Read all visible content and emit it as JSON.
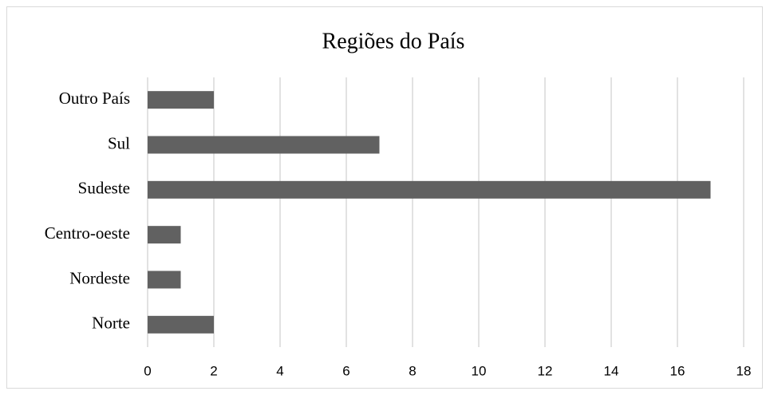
{
  "chart_data": {
    "type": "bar",
    "orientation": "horizontal",
    "title": "Regiões do País",
    "categories": [
      "Outro País",
      "Sul",
      "Sudeste",
      "Centro-oeste",
      "Nordeste",
      "Norte"
    ],
    "values": [
      2,
      7,
      17,
      1,
      1,
      2
    ],
    "color": "#616161",
    "xlim": [
      0,
      18
    ],
    "xticks": [
      0,
      2,
      4,
      6,
      8,
      10,
      12,
      14,
      16,
      18
    ],
    "grid": true
  }
}
